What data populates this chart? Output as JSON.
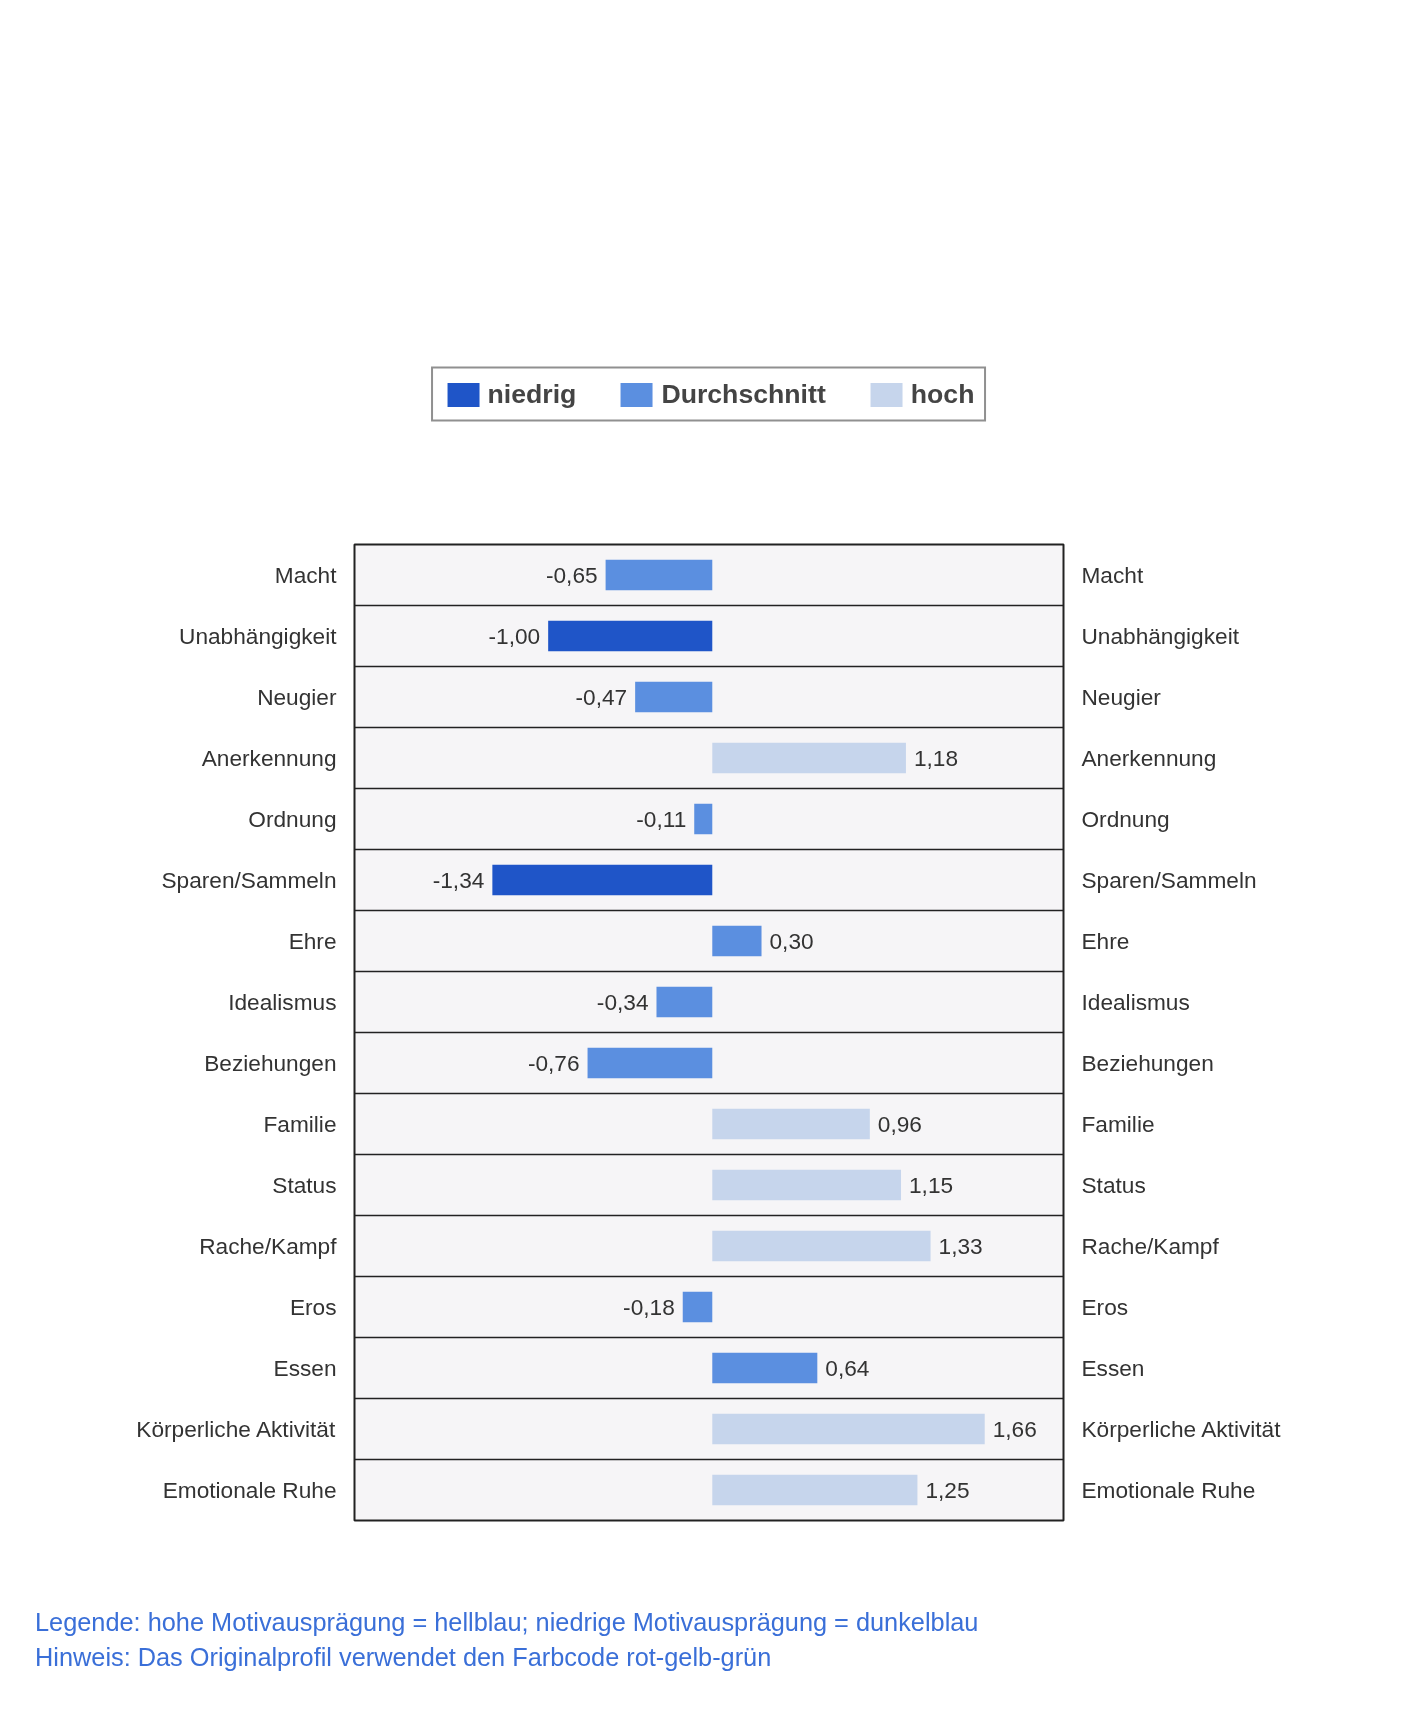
{
  "chart_data": {
    "type": "bar",
    "orientation": "horizontal",
    "categories": [
      "Macht",
      "Unabhängigkeit",
      "Neugier",
      "Anerkennung",
      "Ordnung",
      "Sparen/Sammeln",
      "Ehre",
      "Idealismus",
      "Beziehungen",
      "Familie",
      "Status",
      "Rache/Kampf",
      "Eros",
      "Essen",
      "Körperliche Aktivität",
      "Emotionale Ruhe"
    ],
    "series": [
      {
        "name": "niedrig",
        "color": "#1f55c8",
        "values": [
          null,
          -1.0,
          null,
          null,
          null,
          -1.34,
          null,
          null,
          null,
          null,
          null,
          null,
          null,
          null,
          null,
          null
        ],
        "value_labels": [
          null,
          "-1,00",
          null,
          null,
          null,
          "-1,34",
          null,
          null,
          null,
          null,
          null,
          null,
          null,
          null,
          null,
          null
        ]
      },
      {
        "name": "Durchschnitt",
        "color": "#5b8fe0",
        "values": [
          -0.65,
          null,
          -0.47,
          null,
          -0.11,
          null,
          0.3,
          -0.34,
          -0.76,
          null,
          null,
          null,
          -0.18,
          0.64,
          null,
          null
        ],
        "value_labels": [
          "-0,65",
          null,
          "-0,47",
          null,
          "-0,11",
          null,
          "0,30",
          "-0,34",
          "-0,76",
          null,
          null,
          null,
          "-0,18",
          "0,64",
          null,
          null
        ]
      },
      {
        "name": "hoch",
        "color": "#c6d5ec",
        "values": [
          null,
          null,
          null,
          1.18,
          null,
          null,
          null,
          null,
          null,
          0.96,
          1.15,
          1.33,
          null,
          null,
          1.66,
          1.25
        ],
        "value_labels": [
          null,
          null,
          null,
          "1,18",
          null,
          null,
          null,
          null,
          null,
          "0,96",
          "1,15",
          "1,33",
          null,
          null,
          "1,66",
          "1,25"
        ]
      }
    ],
    "grid": "y",
    "tick_labels": "y",
    "legend": "top",
    "annotations": [
      "Legende: hohe Motivausprägung = hellblau; niedrige Motivausprägung = dunkelblau",
      "Hinweis: Das Originalprofil verwendet den Farbcode rot-gelb-grün"
    ]
  }
}
